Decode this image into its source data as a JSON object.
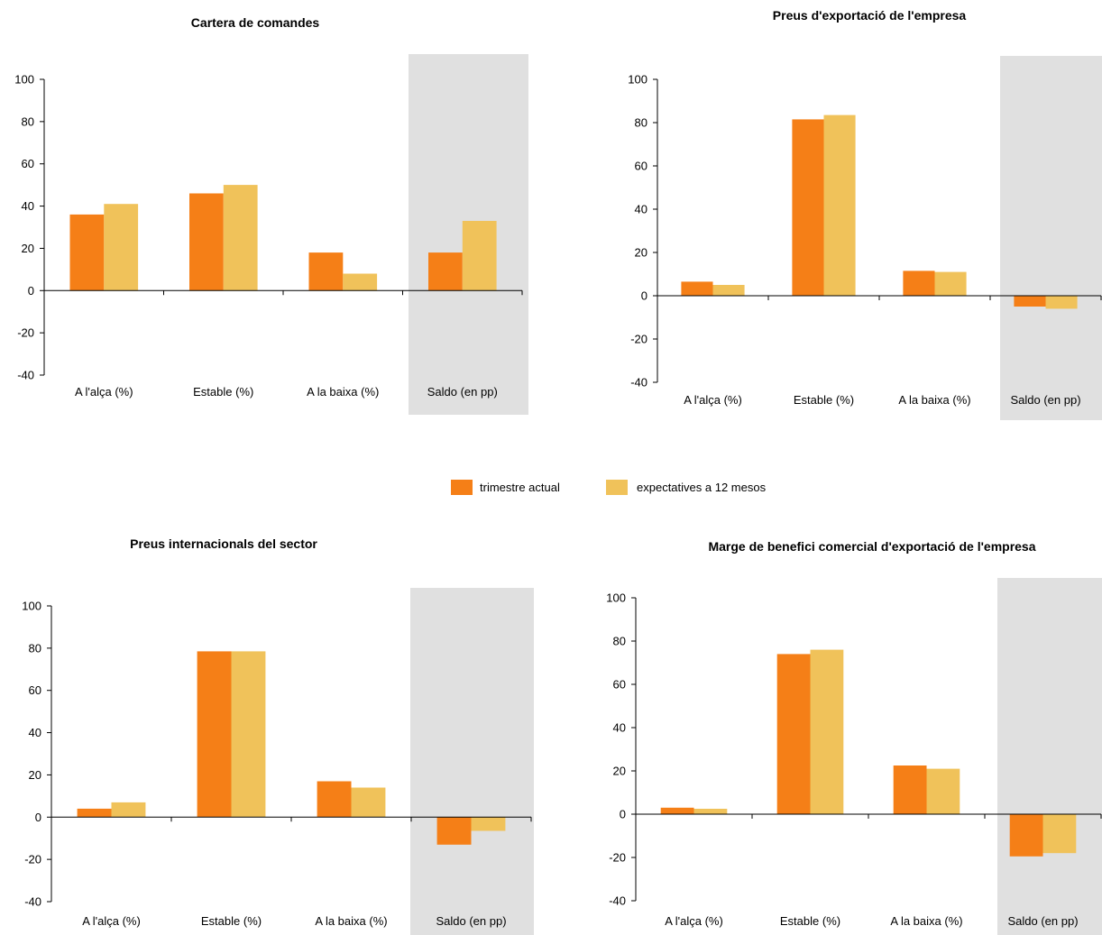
{
  "legend": {
    "items": [
      {
        "label": "trimestre actual",
        "color": "#F57F17"
      },
      {
        "label": "expectatives a 12 mesos",
        "color": "#F0C25A"
      }
    ]
  },
  "colors": {
    "highlight_band": "#E0E0E0",
    "axis": "#000000"
  },
  "chart_data": [
    {
      "type": "bar",
      "title": "Cartera de comandes",
      "categories": [
        "A l'alça (%)",
        "Estable (%)",
        "A la baixa (%)",
        "Saldo (en pp)"
      ],
      "highlighted_category": "Saldo (en pp)",
      "series": [
        {
          "name": "trimestre actual",
          "values": [
            36,
            46,
            18,
            18
          ]
        },
        {
          "name": "expectatives a 12 mesos",
          "values": [
            41,
            50,
            8,
            33
          ]
        }
      ],
      "ylim": [
        -40,
        100
      ],
      "yticks": [
        "100",
        "80",
        "60",
        "40",
        "20",
        "0",
        "-20",
        "-40"
      ],
      "grid": false
    },
    {
      "type": "bar",
      "title": "Preus d'exportació de l'empresa",
      "categories": [
        "A l'alça (%)",
        "Estable (%)",
        "A la baixa (%)",
        "Saldo (en pp)"
      ],
      "highlighted_category": "Saldo (en pp)",
      "series": [
        {
          "name": "trimestre actual",
          "values": [
            6.5,
            81.5,
            11.5,
            -5
          ]
        },
        {
          "name": "expectatives a 12 mesos",
          "values": [
            5,
            83.5,
            11,
            -6
          ]
        }
      ],
      "ylim": [
        -40,
        100
      ],
      "yticks": [
        "100",
        "80",
        "60",
        "40",
        "20",
        "0",
        "-20",
        "-40"
      ],
      "grid": false
    },
    {
      "type": "bar",
      "title": "Preus internacionals del sector",
      "categories": [
        "A l'alça (%)",
        "Estable (%)",
        "A la baixa (%)",
        "Saldo (en pp)"
      ],
      "highlighted_category": "Saldo (en pp)",
      "series": [
        {
          "name": "trimestre actual",
          "values": [
            4,
            78.5,
            17,
            -13
          ]
        },
        {
          "name": "expectatives a 12 mesos",
          "values": [
            7,
            78.5,
            14,
            -6.5
          ]
        }
      ],
      "ylim": [
        -40,
        100
      ],
      "yticks": [
        "100",
        "80",
        "60",
        "40",
        "20",
        "0",
        "-20",
        "-40"
      ],
      "grid": false
    },
    {
      "type": "bar",
      "title": "Marge de benefici comercial d'exportació de l'empresa",
      "categories": [
        "A l'alça (%)",
        "Estable (%)",
        "A la baixa (%)",
        "Saldo (en pp)"
      ],
      "highlighted_category": "Saldo (en pp)",
      "series": [
        {
          "name": "trimestre actual",
          "values": [
            3,
            74,
            22.5,
            -19.5
          ]
        },
        {
          "name": "expectatives a 12 mesos",
          "values": [
            2.5,
            76,
            21,
            -18
          ]
        }
      ],
      "ylim": [
        -40,
        100
      ],
      "yticks": [
        "100",
        "80",
        "60",
        "40",
        "20",
        "0",
        "-20",
        "-40"
      ],
      "grid": false
    }
  ]
}
